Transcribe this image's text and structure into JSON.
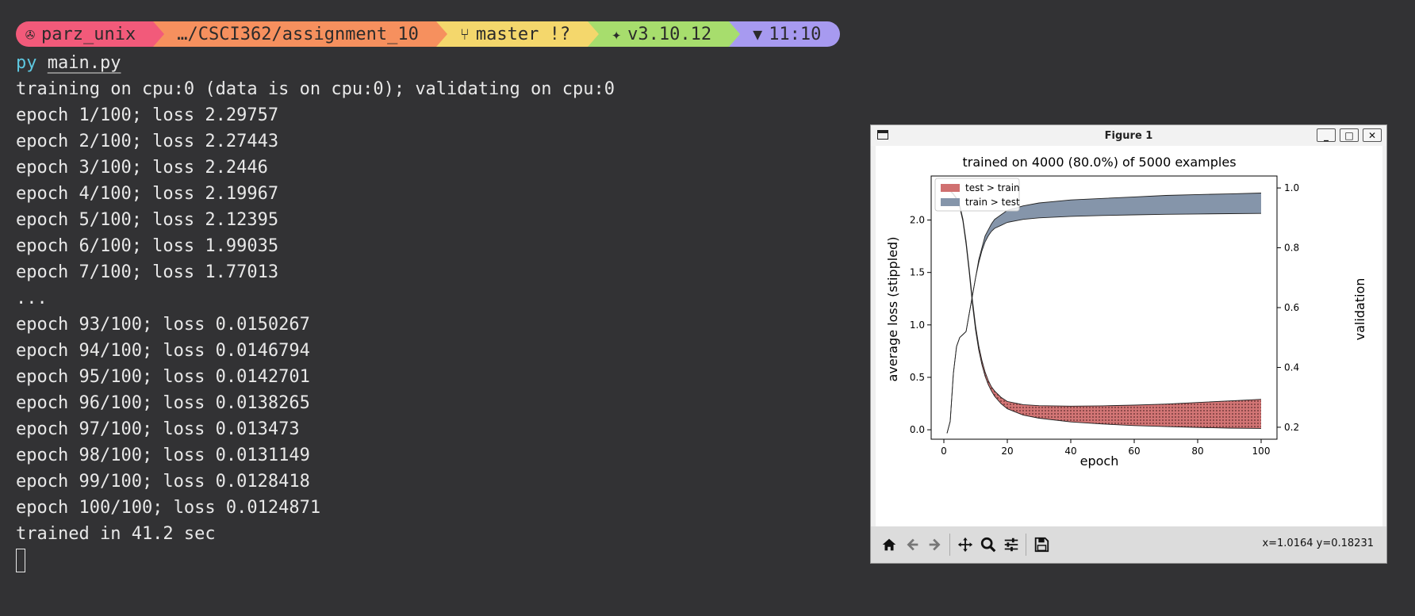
{
  "prompt": {
    "user": "parz_unix",
    "path": "…/CSCI362/assignment_10",
    "git": "master !?",
    "python": "v3.10.12",
    "time": "11:10",
    "colors": [
      "#f25a7a",
      "#f6905e",
      "#f4d76c",
      "#a7dd6d",
      "#a79af0"
    ]
  },
  "terminal": {
    "cmd_prefix": "py",
    "cmd_file": "main.py",
    "lines": [
      "training on cpu:0 (data is on cpu:0); validating on cpu:0",
      "epoch 1/100; loss 2.29757",
      "epoch 2/100; loss 2.27443",
      "epoch 3/100; loss 2.2446",
      "epoch 4/100; loss 2.19967",
      "epoch 5/100; loss 2.12395",
      "epoch 6/100; loss 1.99035",
      "epoch 7/100; loss 1.77013",
      "...",
      "epoch 93/100; loss 0.0150267",
      "epoch 94/100; loss 0.0146794",
      "epoch 95/100; loss 0.0142701",
      "epoch 96/100; loss 0.0138265",
      "epoch 97/100; loss 0.013473",
      "epoch 98/100; loss 0.0131149",
      "epoch 99/100; loss 0.0128418",
      "epoch 100/100; loss 0.0124871",
      "trained in 41.2 sec"
    ]
  },
  "window": {
    "title": "Figure 1",
    "coords": "x=1.0164 y=0.18231"
  },
  "chart_data": {
    "type": "area",
    "title": "trained on 4000 (80.0%) of 5000 examples",
    "xlabel": "epoch",
    "ylabel": "average loss (stippled)",
    "ylabel_right": "validation",
    "xlim": [
      -4,
      105
    ],
    "ylim": [
      -0.09,
      2.42
    ],
    "ylim_right": [
      0.16,
      1.04
    ],
    "xticks": [
      0,
      20,
      40,
      60,
      80,
      100
    ],
    "yticks": [
      0.0,
      0.5,
      1.0,
      1.5,
      2.0
    ],
    "yticks_right": [
      0.2,
      0.4,
      0.6,
      0.8,
      1.0
    ],
    "legend": {
      "position": "top-left",
      "entries": [
        {
          "label": "test > train",
          "color": "#d07070"
        },
        {
          "label": "train > test",
          "color": "#8595aa"
        }
      ]
    },
    "loss": {
      "x": [
        1,
        2,
        3,
        4,
        5,
        6,
        7,
        8,
        9,
        10,
        11,
        12,
        13,
        14,
        15,
        16,
        18,
        20,
        25,
        30,
        40,
        50,
        60,
        70,
        80,
        90,
        100
      ],
      "train": [
        2.298,
        2.274,
        2.245,
        2.2,
        2.124,
        1.99,
        1.77,
        1.5,
        1.2,
        0.95,
        0.76,
        0.62,
        0.51,
        0.43,
        0.37,
        0.32,
        0.25,
        0.2,
        0.14,
        0.11,
        0.075,
        0.055,
        0.04,
        0.03,
        0.022,
        0.016,
        0.0125
      ],
      "test": [
        2.3,
        2.28,
        2.25,
        2.21,
        2.14,
        2.01,
        1.8,
        1.53,
        1.24,
        0.99,
        0.8,
        0.66,
        0.55,
        0.47,
        0.41,
        0.37,
        0.31,
        0.27,
        0.24,
        0.23,
        0.225,
        0.228,
        0.235,
        0.245,
        0.26,
        0.275,
        0.29
      ]
    },
    "validation": {
      "x": [
        1,
        2,
        3,
        4,
        5,
        6,
        7,
        8,
        9,
        10,
        11,
        12,
        13,
        14,
        15,
        16,
        18,
        20,
        25,
        30,
        40,
        50,
        60,
        70,
        80,
        90,
        100
      ],
      "train": [
        0.18,
        0.22,
        0.38,
        0.47,
        0.5,
        0.51,
        0.52,
        0.58,
        0.64,
        0.7,
        0.76,
        0.8,
        0.84,
        0.86,
        0.88,
        0.895,
        0.91,
        0.925,
        0.94,
        0.95,
        0.96,
        0.965,
        0.97,
        0.975,
        0.978,
        0.98,
        0.983
      ],
      "test": [
        0.18,
        0.22,
        0.38,
        0.47,
        0.5,
        0.51,
        0.52,
        0.58,
        0.64,
        0.7,
        0.75,
        0.79,
        0.82,
        0.84,
        0.855,
        0.865,
        0.875,
        0.885,
        0.895,
        0.9,
        0.905,
        0.908,
        0.91,
        0.912,
        0.913,
        0.914,
        0.915
      ]
    }
  }
}
